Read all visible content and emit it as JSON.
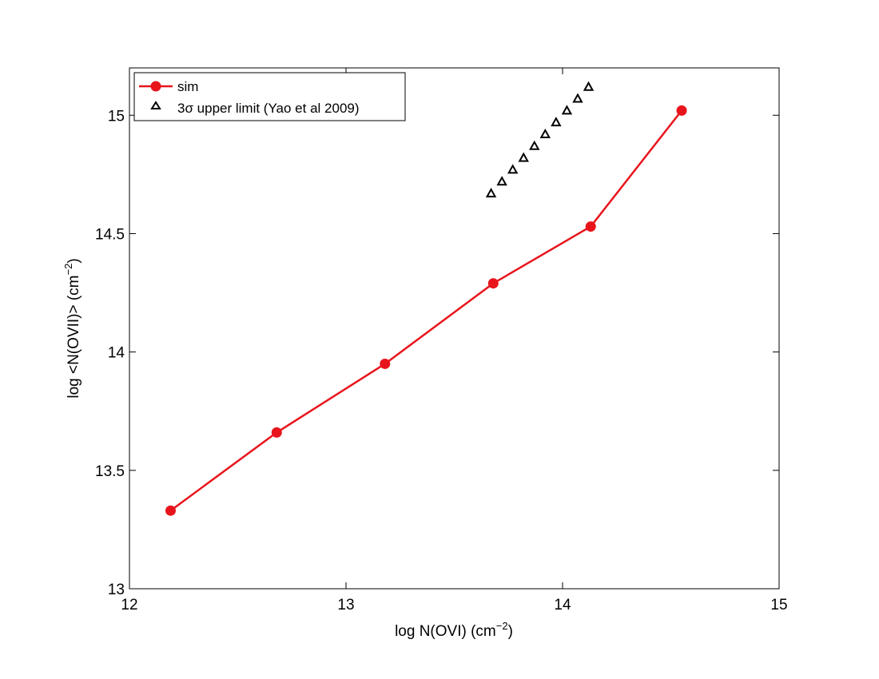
{
  "chart_data": {
    "type": "line",
    "xlabel": {
      "main": "log N(OVI) (cm",
      "sup": "−2",
      "tail": ")"
    },
    "ylabel": {
      "main": "log <N(OVII)> (cm",
      "sup": "−2",
      "tail": ")"
    },
    "xlim": [
      12,
      15
    ],
    "ylim": [
      13,
      15.2
    ],
    "x_ticks": [
      "12",
      "13",
      "14",
      "15"
    ],
    "y_ticks": [
      "13",
      "13.5",
      "14",
      "14.5",
      "15"
    ],
    "grid": false,
    "legend_position": "top-left",
    "series": [
      {
        "name": "sim",
        "style": "line-with-markers",
        "color": "#e8141c",
        "x": [
          12.19,
          12.68,
          13.18,
          13.68,
          14.13,
          14.55
        ],
        "y": [
          13.33,
          13.66,
          13.95,
          14.29,
          14.53,
          15.02
        ]
      },
      {
        "name": "3σ upper limit (Yao et al 2009)",
        "style": "triangle-markers",
        "color": "#000000",
        "x": [
          13.67,
          13.72,
          13.77,
          13.82,
          13.87,
          13.92,
          13.97,
          14.02,
          14.07,
          14.12
        ],
        "y": [
          14.67,
          14.72,
          14.77,
          14.82,
          14.87,
          14.92,
          14.97,
          15.02,
          15.07,
          15.12
        ]
      }
    ]
  }
}
